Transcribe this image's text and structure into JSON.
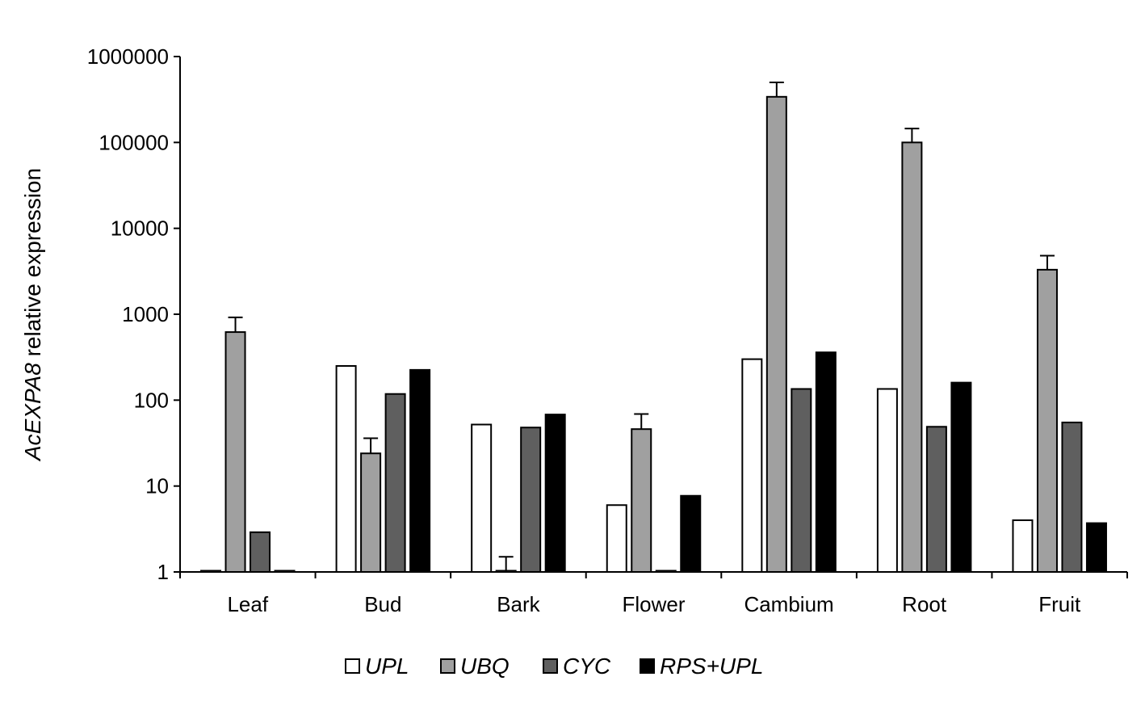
{
  "chart_data": {
    "type": "bar",
    "title": "",
    "xlabel": "",
    "ylabel_italic": "AcEXPA8",
    "ylabel_rest": " relative expression",
    "yscale": "log",
    "ylim": [
      1,
      1000000
    ],
    "yticks": [
      "1",
      "10",
      "100",
      "1000",
      "10000",
      "100000",
      "1000000"
    ],
    "categories": [
      "Leaf",
      "Bud",
      "Bark",
      "Flower",
      "Cambium",
      "Root",
      "Fruit"
    ],
    "series": [
      {
        "name": "UPL",
        "color": "#ffffff",
        "values": [
          1,
          250,
          52,
          6,
          300,
          135,
          4
        ],
        "errors": [
          0,
          0,
          0,
          0,
          0,
          0,
          0
        ]
      },
      {
        "name": "UBQ",
        "color": "#a0a0a0",
        "values": [
          620,
          24,
          1,
          46,
          340000,
          100000,
          3300
        ],
        "errors": [
          300,
          12,
          0.5,
          23,
          160000,
          45000,
          1500
        ]
      },
      {
        "name": "CYC",
        "color": "#5f5f5f",
        "values": [
          2.9,
          118,
          48,
          1,
          135,
          49,
          55
        ],
        "errors": [
          0,
          0,
          0,
          0,
          0,
          0,
          0
        ]
      },
      {
        "name": "RPS+UPL",
        "color": "#000000",
        "values": [
          1,
          225,
          68,
          7.7,
          360,
          160,
          3.7
        ],
        "errors": [
          0,
          0,
          0,
          0,
          0,
          0,
          0
        ]
      }
    ],
    "grid": false,
    "legend_position": "bottom"
  }
}
